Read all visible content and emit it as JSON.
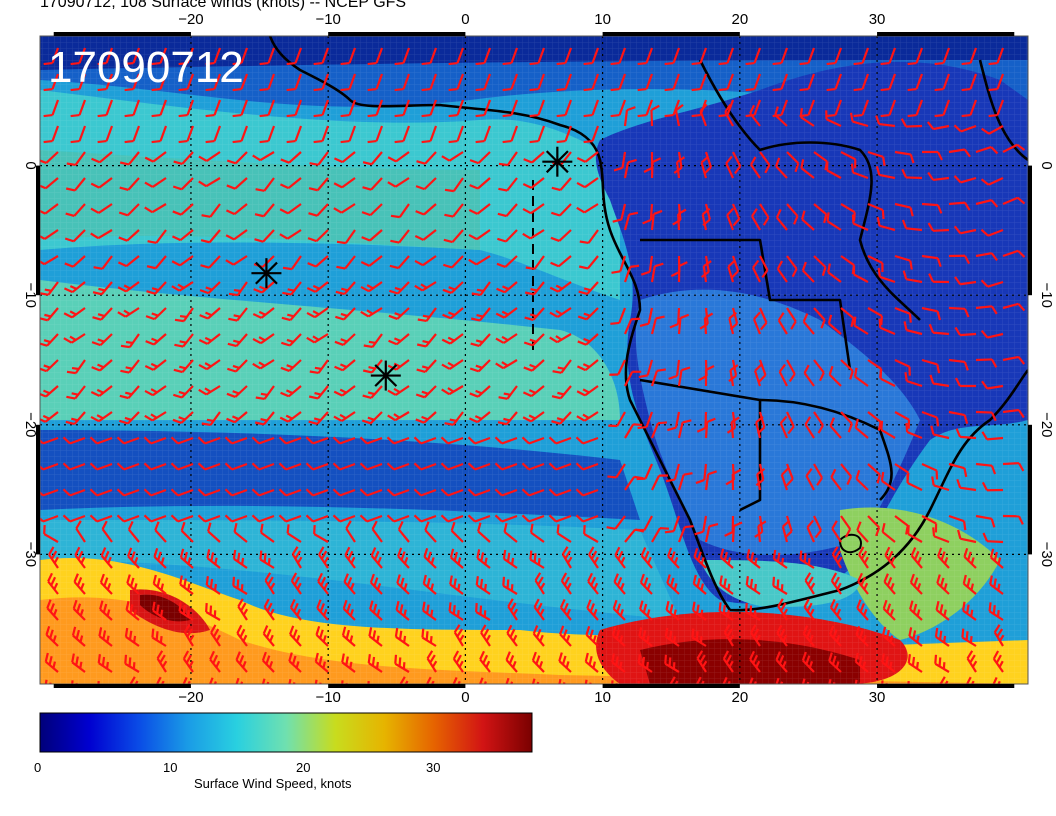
{
  "title": "17090712, 108 Surface winds (knots) -- NCEP GFS",
  "stamp": "17090712",
  "colorbar": {
    "label": "Surface Wind Speed, knots",
    "ticks": [
      "0",
      "10",
      "20",
      "30"
    ],
    "tick_values": [
      0,
      10,
      20,
      30
    ],
    "range": [
      0,
      37
    ],
    "colors": [
      "#00007a",
      "#0000d0",
      "#0a4be6",
      "#1a9be6",
      "#29d0e0",
      "#6fe0b0",
      "#c8dc1e",
      "#e6b400",
      "#e66400",
      "#d21414",
      "#7a0000"
    ]
  },
  "map": {
    "lon_range": [
      -31,
      41
    ],
    "lat_range": [
      -40,
      10
    ],
    "lon_ticks": [
      "-20",
      "-10",
      "0",
      "10",
      "20",
      "30"
    ],
    "lat_ticks": [
      "0",
      "-10",
      "-20",
      "-30"
    ],
    "gridlines": "dotted",
    "barb_color": "#ff1414",
    "marker_icon": "asterisk-icon",
    "markers": [
      {
        "lon": 6.7,
        "lat": 0.3
      },
      {
        "lon": -14.5,
        "lat": -8.3
      },
      {
        "lon": -5.8,
        "lat": -16.2
      }
    ]
  }
}
